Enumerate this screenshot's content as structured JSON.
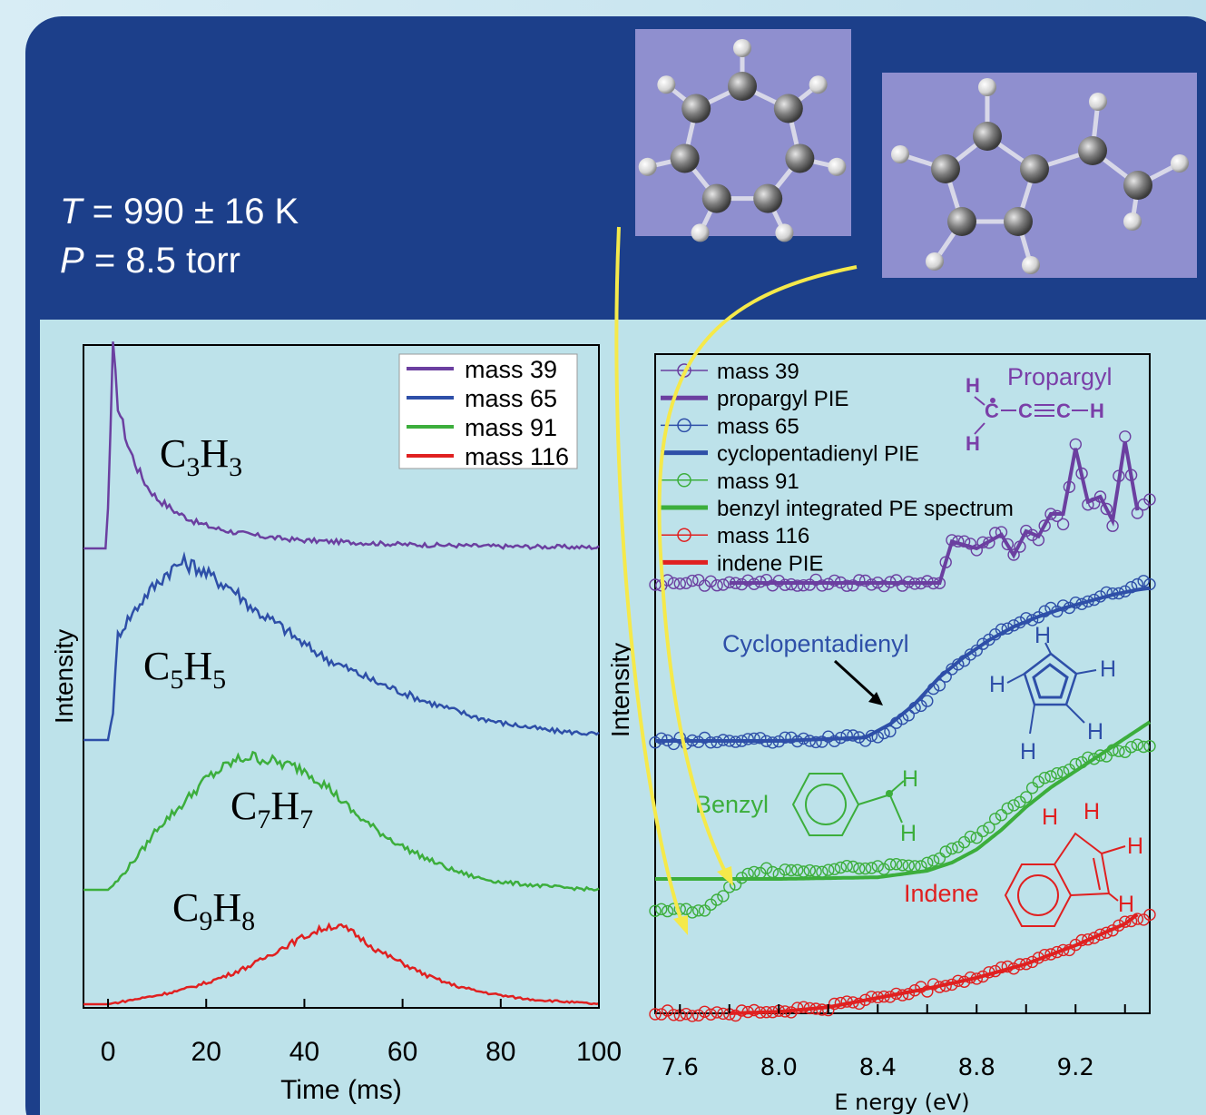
{
  "conditions": {
    "temperature_symbol": "T",
    "temperature": "= 990 ± 16 K",
    "pressure_symbol": "P",
    "pressure": "= 8.5 torr"
  },
  "chart_data": [
    {
      "type": "line",
      "id": "time-profiles",
      "xlabel": "Time (ms)",
      "ylabel": "Intensity",
      "xlim": [
        -5,
        100
      ],
      "xticks": [
        0,
        20,
        40,
        60,
        80,
        100
      ],
      "legend_position": "top-right",
      "series": [
        {
          "name": "mass 39",
          "species": "C3H3",
          "color": "#6b3fa0",
          "x": [
            -5,
            -0.5,
            0,
            1,
            2,
            4,
            6,
            8,
            10,
            14,
            18,
            22,
            26,
            30,
            35,
            40,
            50,
            60,
            70,
            80,
            90,
            100
          ],
          "y": [
            0,
            0,
            0.2,
            1.0,
            0.72,
            0.52,
            0.4,
            0.31,
            0.25,
            0.18,
            0.13,
            0.1,
            0.08,
            0.065,
            0.05,
            0.04,
            0.03,
            0.02,
            0.015,
            0.01,
            0.008,
            0.005
          ]
        },
        {
          "name": "mass 65",
          "species": "C5H5",
          "color": "#2e4fa8",
          "x": [
            -5,
            0,
            1,
            2,
            4,
            6,
            8,
            10,
            12,
            15,
            18,
            20,
            25,
            30,
            35,
            40,
            45,
            50,
            55,
            60,
            65,
            70,
            75,
            80,
            85,
            90,
            95,
            100
          ],
          "y": [
            0,
            0,
            0.15,
            0.55,
            0.63,
            0.7,
            0.77,
            0.82,
            0.88,
            0.93,
            0.91,
            0.87,
            0.8,
            0.68,
            0.6,
            0.5,
            0.42,
            0.36,
            0.3,
            0.25,
            0.2,
            0.16,
            0.12,
            0.09,
            0.07,
            0.05,
            0.04,
            0.03
          ]
        },
        {
          "name": "mass 91",
          "species": "C7H7",
          "color": "#3cae3c",
          "x": [
            -5,
            0,
            2,
            5,
            8,
            10,
            15,
            20,
            25,
            28,
            30,
            35,
            40,
            45,
            50,
            55,
            60,
            65,
            70,
            75,
            80,
            85,
            90,
            95,
            100
          ],
          "y": [
            0,
            0,
            0.06,
            0.18,
            0.3,
            0.4,
            0.55,
            0.72,
            0.82,
            0.86,
            0.86,
            0.82,
            0.78,
            0.66,
            0.5,
            0.38,
            0.28,
            0.2,
            0.13,
            0.08,
            0.05,
            0.035,
            0.02,
            0.01,
            0.0
          ]
        },
        {
          "name": "mass 116",
          "species": "C9H8",
          "color": "#e02020",
          "x": [
            -5,
            0,
            5,
            10,
            15,
            20,
            25,
            30,
            35,
            40,
            45,
            48,
            50,
            55,
            60,
            65,
            70,
            75,
            80,
            85,
            90,
            95,
            100
          ],
          "y": [
            0,
            0,
            0.05,
            0.1,
            0.16,
            0.24,
            0.34,
            0.46,
            0.62,
            0.76,
            0.88,
            0.86,
            0.8,
            0.6,
            0.46,
            0.32,
            0.22,
            0.15,
            0.1,
            0.06,
            0.04,
            0.02,
            0.0
          ]
        }
      ],
      "annotations": [
        {
          "text": "C",
          "sub": "3",
          "text2": "H",
          "sub2": "3"
        },
        {
          "text": "C",
          "sub": "5",
          "text2": "H",
          "sub2": "5"
        },
        {
          "text": "C",
          "sub": "7",
          "text2": "H",
          "sub2": "7"
        },
        {
          "text": "C",
          "sub": "9",
          "text2": "H",
          "sub2": "8"
        }
      ]
    },
    {
      "type": "scatter",
      "id": "photoionization-spectra",
      "xlabel": "E nergy (eV)",
      "ylabel": "Intensity",
      "xlim": [
        7.5,
        9.5
      ],
      "xticks": [
        7.6,
        8.0,
        8.4,
        8.8,
        9.2
      ],
      "legend_position": "top-left",
      "legend": [
        "mass 39",
        "propargyl PIE",
        "mass 65",
        "cyclopentadienyl PIE",
        "mass 91",
        "benzyl integrated PE spectrum",
        "mass 116",
        "indene PIE"
      ],
      "series": [
        {
          "name": "mass 39",
          "color": "#6b3fa0",
          "x": [
            7.5,
            8.0,
            8.4,
            8.65,
            8.7,
            8.8,
            8.9,
            8.95,
            9.0,
            9.05,
            9.1,
            9.15,
            9.2,
            9.25,
            9.3,
            9.35,
            9.4,
            9.45,
            9.5
          ],
          "y": [
            0,
            0,
            0,
            0,
            0.25,
            0.2,
            0.3,
            0.15,
            0.3,
            0.25,
            0.4,
            0.35,
            0.8,
            0.45,
            0.5,
            0.35,
            0.85,
            0.4,
            0.5
          ]
        },
        {
          "name": "propargyl PIE",
          "color": "#6b3fa0",
          "x": [
            7.8,
            8.0,
            8.4,
            8.65,
            8.7,
            8.8,
            8.9,
            8.95,
            9.0,
            9.05,
            9.1,
            9.15,
            9.2,
            9.25,
            9.3,
            9.35,
            9.4,
            9.45
          ],
          "y": [
            0,
            0,
            0,
            0,
            0.24,
            0.2,
            0.28,
            0.16,
            0.3,
            0.27,
            0.4,
            0.4,
            0.78,
            0.47,
            0.5,
            0.36,
            0.82,
            0.42
          ]
        },
        {
          "name": "mass 65",
          "color": "#2e4fa8",
          "x": [
            7.5,
            8.0,
            8.4,
            8.5,
            8.6,
            8.7,
            8.8,
            8.9,
            9.0,
            9.1,
            9.2,
            9.3,
            9.4,
            9.5
          ],
          "y": [
            0,
            0,
            0.02,
            0.12,
            0.25,
            0.42,
            0.55,
            0.65,
            0.72,
            0.78,
            0.82,
            0.86,
            0.9,
            0.95
          ]
        },
        {
          "name": "cyclopentadienyl PIE",
          "color": "#2e4fa8",
          "x": [
            7.5,
            8.0,
            8.35,
            8.45,
            8.55,
            8.65,
            8.75,
            8.85,
            8.95,
            9.05,
            9.15,
            9.25,
            9.35,
            9.45,
            9.5
          ],
          "y": [
            0,
            0,
            0.02,
            0.1,
            0.22,
            0.38,
            0.5,
            0.6,
            0.68,
            0.74,
            0.79,
            0.83,
            0.87,
            0.9,
            0.91
          ]
        },
        {
          "name": "mass 91",
          "color": "#3cae3c",
          "x": [
            7.5,
            7.6,
            7.7,
            7.8,
            7.9,
            8.0,
            8.2,
            8.4,
            8.6,
            8.7,
            8.8,
            8.9,
            9.0,
            9.1,
            9.2,
            9.3,
            9.4,
            9.5
          ],
          "y": [
            -0.2,
            -0.2,
            -0.22,
            -0.05,
            0.05,
            0.05,
            0.06,
            0.08,
            0.1,
            0.18,
            0.28,
            0.42,
            0.55,
            0.68,
            0.74,
            0.8,
            0.84,
            0.88
          ]
        },
        {
          "name": "benzyl integrated PE spectrum",
          "color": "#3cae3c",
          "x": [
            7.5,
            7.8,
            8.0,
            8.4,
            8.6,
            8.7,
            8.8,
            8.9,
            9.0,
            9.1,
            9.2,
            9.3,
            9.4,
            9.5
          ],
          "y": [
            0,
            0,
            0,
            0.01,
            0.05,
            0.1,
            0.18,
            0.3,
            0.44,
            0.56,
            0.66,
            0.76,
            0.86,
            0.96
          ]
        },
        {
          "name": "mass 116",
          "color": "#e02020",
          "x": [
            7.5,
            7.8,
            8.0,
            8.2,
            8.4,
            8.6,
            8.8,
            9.0,
            9.2,
            9.4,
            9.5
          ],
          "y": [
            0,
            0,
            0.01,
            0.04,
            0.1,
            0.16,
            0.24,
            0.33,
            0.44,
            0.58,
            0.62
          ]
        },
        {
          "name": "indene PIE",
          "color": "#e02020",
          "x": [
            7.8,
            8.0,
            8.2,
            8.4,
            8.6,
            8.8,
            9.0,
            9.2,
            9.4,
            9.45
          ],
          "y": [
            0,
            0.01,
            0.04,
            0.1,
            0.16,
            0.23,
            0.32,
            0.44,
            0.58,
            0.64
          ]
        }
      ],
      "annotations": [
        {
          "text": "Propargyl"
        },
        {
          "text": "Cyclopentadienyl"
        },
        {
          "text": "Benzyl"
        },
        {
          "text": "Indene"
        }
      ]
    }
  ],
  "structure_atoms": {
    "h": "H",
    "c": "C"
  }
}
